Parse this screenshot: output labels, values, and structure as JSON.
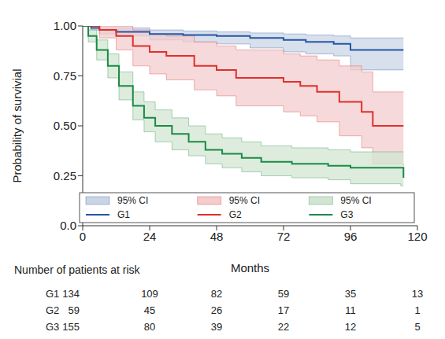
{
  "chart_data": {
    "type": "line",
    "y_label": "Probability of survivial",
    "x_label": "Months",
    "xlim": [
      0,
      120
    ],
    "xticks": [
      0,
      24,
      48,
      72,
      96,
      120
    ],
    "ylim": [
      0,
      1
    ],
    "yticks": [
      {
        "value": 0,
        "label": "0.0"
      },
      0.25,
      {
        "value": 0.5,
        "label": "0.50"
      },
      0.75,
      {
        "value": 1,
        "label": "1.00"
      }
    ],
    "grid": false,
    "legend": "bottom",
    "series": [
      {
        "name": "G1",
        "color": "#2556a8",
        "ci_color": "#c9d5e4",
        "ci_label": "95% CI",
        "line_style": "step",
        "x": [
          0,
          3,
          6,
          12,
          24,
          36,
          48,
          60,
          72,
          80,
          90,
          96,
          115
        ],
        "values": [
          1,
          0.99,
          0.98,
          0.97,
          0.96,
          0.955,
          0.95,
          0.94,
          0.93,
          0.92,
          0.91,
          0.88,
          0.88
        ],
        "ci_lower": [
          1,
          0.98,
          0.96,
          0.95,
          0.93,
          0.92,
          0.91,
          0.89,
          0.87,
          0.86,
          0.85,
          0.78,
          0.78
        ],
        "ci_upper": [
          1,
          1,
          0.99,
          0.99,
          0.98,
          0.975,
          0.97,
          0.965,
          0.96,
          0.955,
          0.95,
          0.94,
          0.94
        ]
      },
      {
        "name": "G2",
        "color": "#e0302c",
        "ci_color": "#f3cccd",
        "ci_label": "95% CI",
        "line_style": "step",
        "x": [
          0,
          6,
          12,
          18,
          24,
          30,
          40,
          48,
          55,
          72,
          78,
          84,
          92,
          100,
          104,
          115
        ],
        "values": [
          1,
          0.98,
          0.95,
          0.9,
          0.87,
          0.85,
          0.8,
          0.78,
          0.74,
          0.72,
          0.7,
          0.67,
          0.62,
          0.57,
          0.5,
          0.5
        ],
        "ci_lower": [
          1,
          0.94,
          0.88,
          0.8,
          0.76,
          0.73,
          0.68,
          0.65,
          0.6,
          0.57,
          0.55,
          0.52,
          0.45,
          0.39,
          0.31,
          0.3
        ],
        "ci_upper": [
          1,
          1,
          1,
          0.98,
          0.96,
          0.95,
          0.92,
          0.9,
          0.88,
          0.86,
          0.85,
          0.83,
          0.8,
          0.77,
          0.67,
          0.67
        ]
      },
      {
        "name": "G3",
        "color": "#1a8a45",
        "ci_color": "#d2e5d2",
        "ci_label": "95% CI",
        "line_style": "step",
        "x": [
          0,
          2,
          5,
          9,
          13,
          18,
          22,
          26,
          32,
          38,
          44,
          50,
          57,
          64,
          75,
          88,
          96,
          114,
          115
        ],
        "values": [
          1,
          0.95,
          0.88,
          0.8,
          0.7,
          0.6,
          0.54,
          0.5,
          0.46,
          0.42,
          0.38,
          0.36,
          0.34,
          0.32,
          0.31,
          0.3,
          0.29,
          0.29,
          0.24
        ],
        "ci_lower": [
          1,
          0.92,
          0.83,
          0.74,
          0.63,
          0.53,
          0.47,
          0.42,
          0.38,
          0.35,
          0.31,
          0.29,
          0.27,
          0.25,
          0.24,
          0.23,
          0.21,
          0.2,
          0.2
        ],
        "ci_upper": [
          1,
          0.98,
          0.93,
          0.86,
          0.77,
          0.67,
          0.62,
          0.58,
          0.54,
          0.5,
          0.46,
          0.44,
          0.42,
          0.4,
          0.39,
          0.38,
          0.37,
          0.37,
          0.37
        ]
      }
    ],
    "risk_table": {
      "title": "Number of patients at risk",
      "times": [
        0,
        24,
        48,
        72,
        96,
        120
      ],
      "rows": [
        {
          "name": "G1",
          "values": [
            134,
            109,
            82,
            59,
            35,
            13
          ]
        },
        {
          "name": "G2",
          "values": [
            59,
            45,
            26,
            17,
            11,
            1
          ]
        },
        {
          "name": "G3",
          "values": [
            155,
            80,
            39,
            22,
            12,
            5
          ]
        }
      ]
    }
  }
}
